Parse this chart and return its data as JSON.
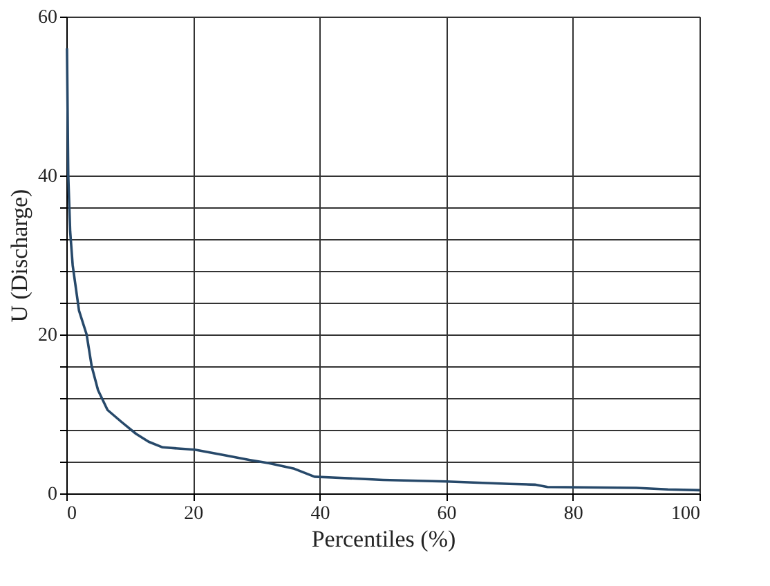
{
  "chart_data": {
    "type": "line",
    "xlabel": "Percentiles (%)",
    "ylabel": "U (Discharge)",
    "x": [
      0.1,
      0.3,
      0.6,
      1,
      2,
      3.2,
      4,
      5,
      6.5,
      8.7,
      11,
      13,
      15.2,
      20.3,
      25,
      29,
      32,
      36,
      39.2,
      42,
      50,
      60,
      70,
      74,
      76,
      90,
      95,
      100
    ],
    "series": [
      {
        "color": "#27496a",
        "values": [
          56,
          40,
          33,
          28.7,
          23,
          20,
          16,
          13,
          10.5,
          9,
          7.5,
          6.5,
          5.8,
          5.5,
          4.8,
          4.2,
          3.8,
          3.1,
          2.1,
          2.0,
          1.7,
          1.5,
          1.2,
          1.1,
          0.8,
          0.7,
          0.5,
          0.4
        ]
      }
    ],
    "xlim": [
      0,
      100
    ],
    "ylim": [
      0,
      60
    ],
    "xticks": [
      0,
      20,
      40,
      60,
      80,
      100
    ],
    "yticks": [
      0,
      {
        "value": 4,
        "label": null
      },
      {
        "value": 8,
        "label": null
      },
      {
        "value": 12,
        "label": null
      },
      {
        "value": 16,
        "label": null
      },
      20,
      {
        "value": 24,
        "label": null
      },
      {
        "value": 28,
        "label": null
      },
      {
        "value": 32,
        "label": null
      },
      {
        "value": 36,
        "label": null
      },
      40,
      60
    ],
    "grid": true,
    "marker": "none",
    "line_style": "solid"
  }
}
